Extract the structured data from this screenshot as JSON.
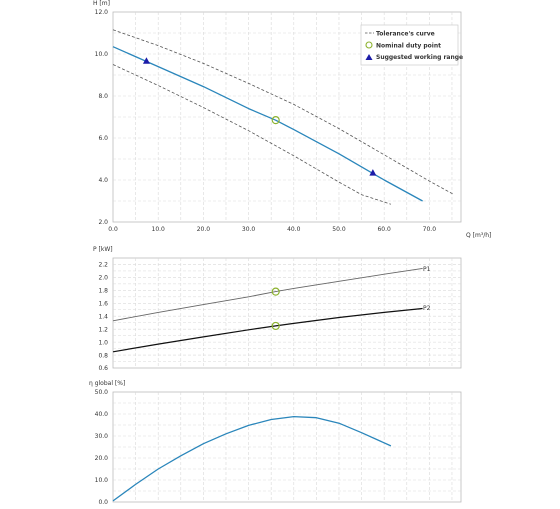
{
  "colors": {
    "curve": "#2a86bb",
    "tolerance": "#555555",
    "duty_point": "#8cb22e",
    "working_range": "#1c1ca8",
    "p1": "#666666",
    "p2": "#111111",
    "grid": "#d9d9d9",
    "axis": "#bbbbbb"
  },
  "chart_data": [
    {
      "type": "line",
      "ylabel": "H [m]",
      "xlabel": "Q [m³/h]",
      "xlim": [
        0,
        77
      ],
      "ylim": [
        2,
        12
      ],
      "x_ticks": [
        "0.0",
        "10.0",
        "20.0",
        "30.0",
        "40.0",
        "50.0",
        "60.0",
        "70.0"
      ],
      "y_ticks": [
        "2.0",
        "4.0",
        "6.0",
        "8.0",
        "10.0",
        "12.0"
      ],
      "grid": true,
      "legend_position": "top-right",
      "legend": [
        "Tolerance's curve",
        "Nominal duty point",
        "Suggested working range"
      ],
      "series": [
        {
          "x": [
            0,
            10,
            20,
            30,
            36,
            40,
            50,
            60,
            68.5
          ],
          "y": [
            10.35,
            9.4,
            8.45,
            7.4,
            6.85,
            6.4,
            5.25,
            4.0,
            3.0
          ]
        },
        {
          "dashed": true,
          "x": [
            0,
            10,
            20,
            30,
            40,
            50,
            60,
            70,
            75.5
          ],
          "y": [
            11.15,
            10.4,
            9.55,
            8.6,
            7.6,
            6.45,
            5.2,
            3.95,
            3.3
          ]
        },
        {
          "dashed": true,
          "x": [
            0,
            10,
            20,
            30,
            40,
            50,
            55,
            61.5
          ],
          "y": [
            9.5,
            8.5,
            7.45,
            6.35,
            5.15,
            3.9,
            3.3,
            2.85
          ]
        }
      ],
      "duty_point": {
        "x": 36,
        "y": 6.85
      },
      "working_range": [
        {
          "x": 7.4,
          "y": 9.68
        },
        {
          "x": 57.5,
          "y": 4.35
        }
      ]
    },
    {
      "type": "line",
      "ylabel": "P [kW]",
      "xlim": [
        0,
        77
      ],
      "ylim": [
        0.6,
        2.3
      ],
      "y_ticks": [
        "0.6",
        "0.8",
        "1.0",
        "1.2",
        "1.4",
        "1.6",
        "1.8",
        "2.0",
        "2.2"
      ],
      "grid": true,
      "series": [
        {
          "name": "P1",
          "x": [
            0,
            10,
            20,
            30,
            36,
            40,
            50,
            60,
            68.5
          ],
          "y": [
            1.33,
            1.46,
            1.58,
            1.7,
            1.78,
            1.83,
            1.94,
            2.05,
            2.14
          ]
        },
        {
          "name": "P2",
          "x": [
            0,
            10,
            20,
            30,
            36,
            40,
            50,
            60,
            68.5
          ],
          "y": [
            0.85,
            0.97,
            1.08,
            1.19,
            1.25,
            1.29,
            1.38,
            1.46,
            1.52
          ]
        }
      ],
      "duty_points": [
        {
          "x": 36,
          "y": 1.78
        },
        {
          "x": 36,
          "y": 1.25
        }
      ]
    },
    {
      "type": "line",
      "ylabel": "η global [%]",
      "xlim": [
        0,
        77
      ],
      "ylim": [
        0,
        50
      ],
      "y_ticks": [
        "0.0",
        "10.0",
        "20.0",
        "30.0",
        "40.0",
        "50.0"
      ],
      "grid": true,
      "series": [
        {
          "x": [
            0,
            5,
            10,
            15,
            20,
            25,
            30,
            35,
            40,
            45,
            50,
            55,
            61.5
          ],
          "y": [
            0.5,
            8.0,
            15.0,
            21.0,
            26.5,
            31.0,
            34.8,
            37.5,
            38.8,
            38.3,
            35.8,
            31.5,
            25.5
          ]
        }
      ]
    }
  ]
}
